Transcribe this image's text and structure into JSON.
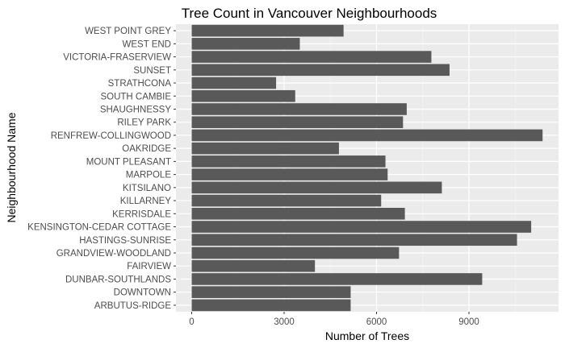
{
  "chart_data": {
    "type": "bar",
    "orientation": "horizontal",
    "title": "Tree Count in Vancouver Neighbourhoods",
    "xlabel": "Number of Trees",
    "ylabel": "Neighbourhood Name",
    "xlim": [
      0,
      12000
    ],
    "xticks": [
      0,
      3000,
      6000,
      9000
    ],
    "xtick_labels": [
      "0",
      "3000",
      "6000",
      "9000"
    ],
    "grid": true,
    "categories": [
      "WEST POINT GREY",
      "WEST END",
      "VICTORIA-FRASERVIEW",
      "SUNSET",
      "STRATHCONA",
      "SOUTH CAMBIE",
      "SHAUGHNESSY",
      "RILEY PARK",
      "RENFREW-COLLINGWOOD",
      "OAKRIDGE",
      "MOUNT PLEASANT",
      "MARPOLE",
      "KITSILANO",
      "KILLARNEY",
      "KERRISDALE",
      "KENSINGTON-CEDAR COTTAGE",
      "HASTINGS-SUNRISE",
      "GRANDVIEW-WOODLAND",
      "FAIRVIEW",
      "DUNBAR-SOUTHLANDS",
      "DOWNTOWN",
      "ARBUTUS-RIDGE"
    ],
    "values": [
      4930,
      3510,
      7780,
      8370,
      2740,
      3360,
      6980,
      6860,
      11390,
      4780,
      6290,
      6360,
      8120,
      6150,
      6920,
      11020,
      10560,
      6730,
      4000,
      9430,
      5160,
      5160
    ],
    "colors": {
      "bar": "#595959",
      "panel_bg": "#ebebeb",
      "grid_major": "#ffffff",
      "grid_minor": "#f5f5f5",
      "tick_mark": "#333333",
      "tick_text": "#4d4d4d"
    }
  }
}
